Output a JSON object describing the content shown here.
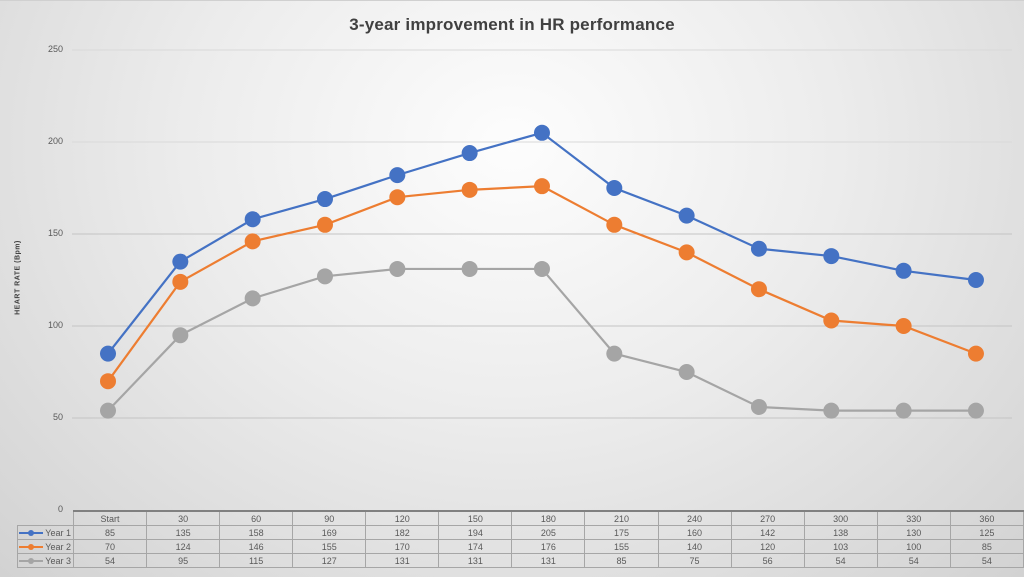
{
  "chart_data": {
    "type": "line",
    "title": "3-year improvement in HR performance",
    "xlabel": "",
    "ylabel": "HEART RATE (Bpm)",
    "ylim": [
      0,
      250
    ],
    "yticks": [
      0,
      50,
      100,
      150,
      200,
      250
    ],
    "grid": true,
    "legend_position": "data-table",
    "categories": [
      "Start",
      "30",
      "60",
      "90",
      "120",
      "150",
      "180",
      "210",
      "240",
      "270",
      "300",
      "330",
      "360"
    ],
    "series": [
      {
        "name": "Year 1",
        "color": "#4472C4",
        "values": [
          85,
          135,
          158,
          169,
          182,
          194,
          205,
          175,
          160,
          142,
          138,
          130,
          125
        ]
      },
      {
        "name": "Year 2",
        "color": "#ED7D31",
        "values": [
          70,
          124,
          146,
          155,
          170,
          174,
          176,
          155,
          140,
          120,
          103,
          100,
          85
        ]
      },
      {
        "name": "Year 3",
        "color": "#A5A5A5",
        "values": [
          54,
          95,
          115,
          127,
          131,
          131,
          131,
          85,
          75,
          56,
          54,
          54,
          54
        ]
      }
    ]
  }
}
